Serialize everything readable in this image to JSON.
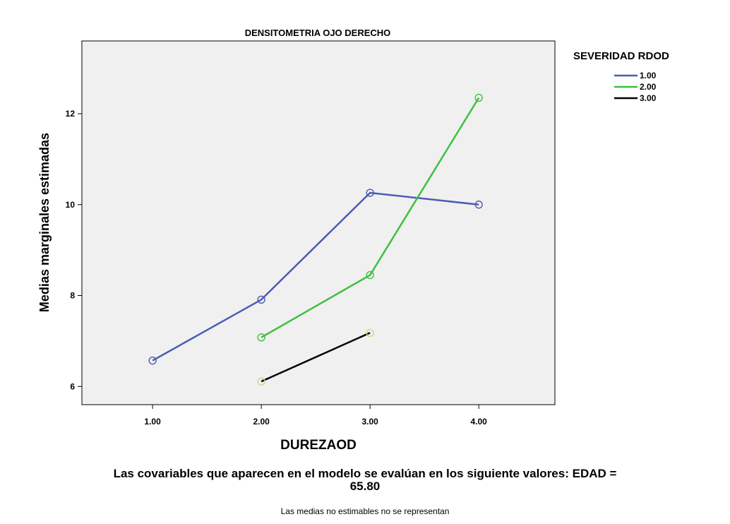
{
  "chart_data": {
    "type": "line",
    "title": "DENSITOMETRIA OJO DERECHO",
    "xlabel": "DUREZAOD",
    "ylabel": "Medias marginales estimadas",
    "categories": [
      "1.00",
      "2.00",
      "3.00",
      "4.00"
    ],
    "x": [
      1,
      2,
      3,
      4
    ],
    "xlim": [
      0.35,
      4.7
    ],
    "ylim": [
      5.6,
      13.6
    ],
    "yticks": [
      6,
      8,
      10,
      12
    ],
    "grid": false,
    "legend": {
      "title": "SEVERIDAD RDOD",
      "placement": "right"
    },
    "series": [
      {
        "name": "1.00",
        "color": "#4a5cb4",
        "values": [
          6.57,
          7.91,
          10.26,
          10.0
        ]
      },
      {
        "name": "2.00",
        "color": "#3fbf3f",
        "values": [
          null,
          7.08,
          8.45,
          12.35
        ]
      },
      {
        "name": "3.00",
        "color": "#000000",
        "marker_color": "#d4d496",
        "values": [
          null,
          6.11,
          7.18,
          null
        ]
      }
    ],
    "plot_background": "#f0f0f0"
  },
  "footnotes": {
    "covariate_line1": "Las covariables que aparecen en el modelo se evalúan en los siguiente valores: EDAD =",
    "covariate_line2": "65.80",
    "note": "Las medias no estimables no se representan"
  }
}
